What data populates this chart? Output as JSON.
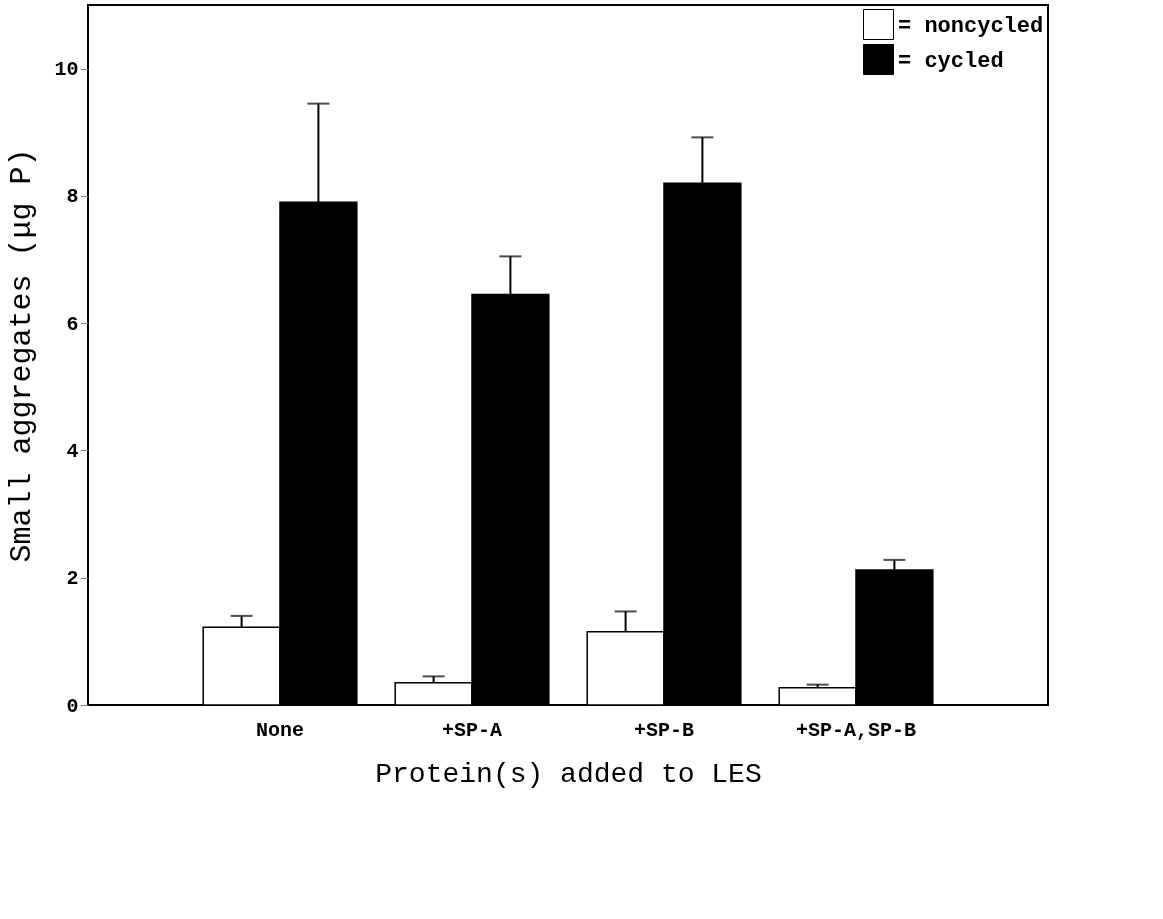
{
  "chart_data": {
    "type": "bar",
    "xlabel": "Protein(s) added to LES",
    "ylabel": "Small aggregates (μg P)",
    "categories": [
      "None",
      "+SP-A",
      "+SP-B",
      "+SP-A,SP-B"
    ],
    "series": [
      {
        "name": "= noncycled",
        "color": "#ffffff",
        "values": [
          1.22,
          0.35,
          1.15,
          0.27
        ],
        "errors": [
          [
            1.22,
            1.4
          ],
          [
            0.35,
            0.45
          ],
          [
            1.15,
            1.47
          ],
          [
            0.27,
            0.32
          ]
        ]
      },
      {
        "name": "= cycled",
        "color": "#000000",
        "values": [
          7.9,
          6.45,
          8.2,
          2.12
        ],
        "errors": [
          [
            7.9,
            9.45
          ],
          [
            6.45,
            7.05
          ],
          [
            8.2,
            8.92
          ],
          [
            2.12,
            2.28
          ]
        ]
      }
    ],
    "ylim": [
      0,
      11
    ],
    "yticks": [
      0,
      2,
      4,
      6,
      8,
      10
    ],
    "grid": false,
    "legend": "top right"
  }
}
